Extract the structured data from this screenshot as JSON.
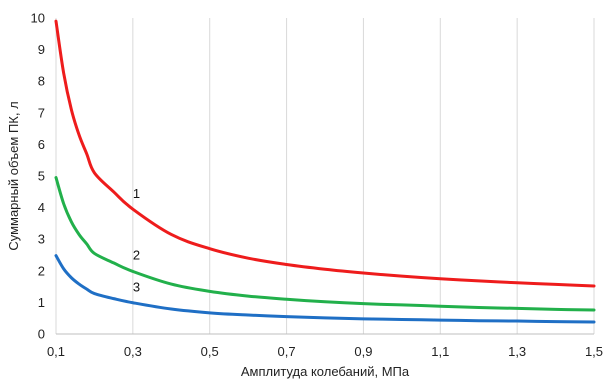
{
  "chart_data": {
    "type": "line",
    "title": "",
    "xlabel": "Амплитуда колебаний, МПа",
    "ylabel": "Суммарный объем ПК, л",
    "xlim": [
      0.1,
      1.5
    ],
    "ylim": [
      0,
      10
    ],
    "x_ticks": [
      "0,1",
      "0,3",
      "0,5",
      "0,7",
      "0,9",
      "1,1",
      "1,3",
      "1,5"
    ],
    "y_ticks": [
      "0",
      "1",
      "2",
      "3",
      "4",
      "5",
      "6",
      "7",
      "8",
      "9",
      "10"
    ],
    "grid": "vertical",
    "legend": "none",
    "series": [
      {
        "name": "1",
        "color": "#ee1c1c",
        "x": [
          0.1,
          0.12,
          0.14,
          0.16,
          0.18,
          0.2,
          0.25,
          0.3,
          0.4,
          0.5,
          0.6,
          0.7,
          0.8,
          0.9,
          1.0,
          1.1,
          1.2,
          1.3,
          1.4,
          1.5
        ],
        "values": [
          9.9,
          8.25,
          7.1,
          6.3,
          5.7,
          5.1,
          4.5,
          3.95,
          3.15,
          2.7,
          2.4,
          2.2,
          2.05,
          1.93,
          1.83,
          1.75,
          1.68,
          1.62,
          1.57,
          1.52
        ]
      },
      {
        "name": "2",
        "color": "#22b04b",
        "x": [
          0.1,
          0.12,
          0.14,
          0.16,
          0.18,
          0.2,
          0.25,
          0.3,
          0.4,
          0.5,
          0.6,
          0.7,
          0.8,
          0.9,
          1.0,
          1.1,
          1.2,
          1.3,
          1.4,
          1.5
        ],
        "values": [
          4.95,
          4.12,
          3.55,
          3.15,
          2.85,
          2.55,
          2.25,
          1.98,
          1.58,
          1.35,
          1.2,
          1.1,
          1.02,
          0.96,
          0.92,
          0.88,
          0.84,
          0.81,
          0.78,
          0.76
        ]
      },
      {
        "name": "3",
        "color": "#1f6fc5",
        "x": [
          0.1,
          0.12,
          0.14,
          0.16,
          0.18,
          0.2,
          0.25,
          0.3,
          0.4,
          0.5,
          0.6,
          0.7,
          0.8,
          0.9,
          1.0,
          1.1,
          1.2,
          1.3,
          1.4,
          1.5
        ],
        "values": [
          2.48,
          2.06,
          1.78,
          1.58,
          1.42,
          1.28,
          1.12,
          0.99,
          0.79,
          0.67,
          0.6,
          0.55,
          0.51,
          0.48,
          0.46,
          0.44,
          0.42,
          0.41,
          0.39,
          0.38
        ]
      }
    ],
    "annotations": [
      {
        "text": "1",
        "x": 0.3,
        "y": 4.3
      },
      {
        "text": "2",
        "x": 0.3,
        "y": 2.35
      },
      {
        "text": "3",
        "x": 0.3,
        "y": 1.35
      }
    ]
  }
}
